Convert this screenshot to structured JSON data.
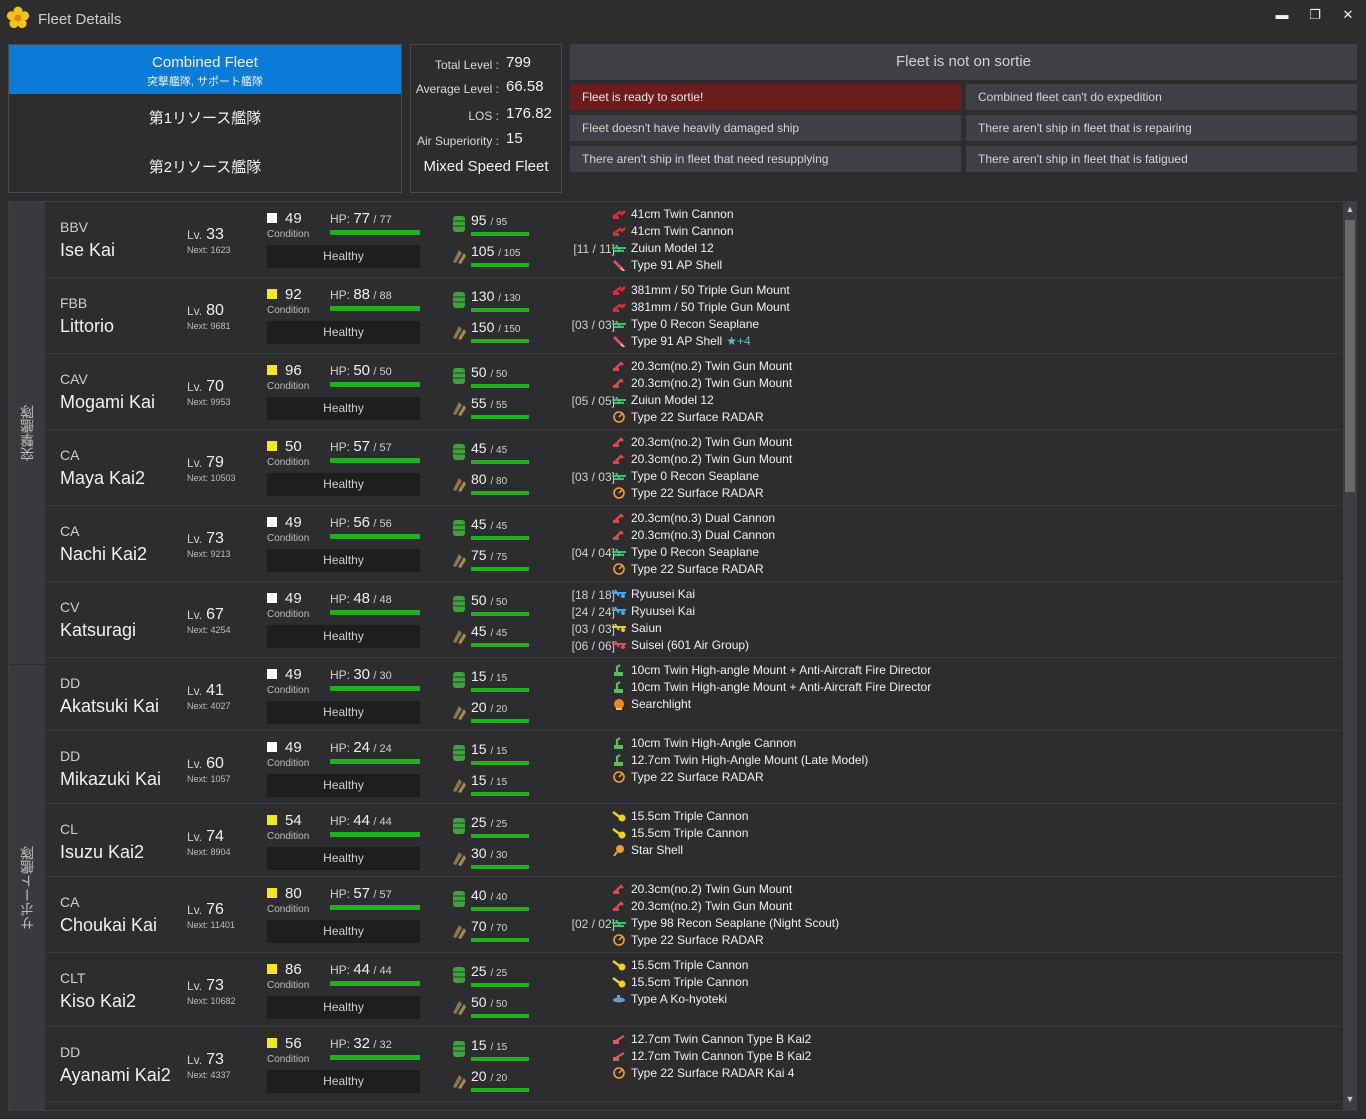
{
  "window": {
    "title": "Fleet Details",
    "minimize_glyph": "▬",
    "restore_glyph": "❐",
    "close_glyph": "✕"
  },
  "fleet_tabs": {
    "combined_label": "Combined Fleet",
    "combined_sub": "突撃艦隊, サポート艦隊",
    "fleet1_label": "第1リソース艦隊",
    "fleet2_label": "第2リソース艦隊"
  },
  "stats": {
    "total_level_label": "Total Level :",
    "total_level": "799",
    "average_level_label": "Average Level :",
    "average_level": "66.58",
    "los_label": "LOS :",
    "los": "176.82",
    "air_superiority_label": "Air Superiority :",
    "air_superiority": "15",
    "speed": "Mixed Speed Fleet"
  },
  "status": {
    "sortie": "Fleet is not on sortie",
    "ready": "Fleet is ready to sortie!",
    "expedition": "Combined fleet can't do expedition",
    "damaged": "Fleet doesn't have heavily damaged ship",
    "repairing": "There aren't ship in fleet that is repairing",
    "resupply": "There aren't ship in fleet that need resupplying",
    "fatigued": "There aren't ship in fleet that is fatigued",
    "ready_color": "#6b1d1d"
  },
  "sections": {
    "strike": "突撃艦隊",
    "support": "サポート艦隊"
  },
  "labels": {
    "lv": "Lv.",
    "next": "Next:",
    "condition": "Condition",
    "hp": "HP:",
    "healthy": "Healthy"
  },
  "colors": {
    "bar_green": "#20b020",
    "accent_blue": "#0a7bd6",
    "cond_white": "#ffffff",
    "cond_yellow": "#f5e61e"
  },
  "ships": [
    {
      "type": "BBV",
      "name": "Ise Kai",
      "lv": "33",
      "next": "1623",
      "cond": "49",
      "cond_color": "white",
      "hp": "77",
      "hp_max": "77",
      "fuel": "95",
      "fuel_max": "95",
      "ammo": "105",
      "ammo_max": "105",
      "equip": [
        {
          "slot": "",
          "icon": "main-gun-red",
          "name": "41cm Twin Cannon"
        },
        {
          "slot": "",
          "icon": "main-gun-red",
          "name": "41cm Twin Cannon"
        },
        {
          "slot": "[11 / 11]",
          "icon": "seaplane-green",
          "name": "Zuiun Model 12"
        },
        {
          "slot": "",
          "icon": "ap-shell",
          "name": "Type 91 AP Shell"
        }
      ]
    },
    {
      "type": "FBB",
      "name": "Littorio",
      "lv": "80",
      "next": "9681",
      "cond": "92",
      "cond_color": "yellow",
      "hp": "88",
      "hp_max": "88",
      "fuel": "130",
      "fuel_max": "130",
      "ammo": "150",
      "ammo_max": "150",
      "equip": [
        {
          "slot": "",
          "icon": "main-gun-red",
          "name": "381mm / 50 Triple Gun Mount"
        },
        {
          "slot": "",
          "icon": "main-gun-red",
          "name": "381mm / 50 Triple Gun Mount"
        },
        {
          "slot": "[03 / 03]",
          "icon": "seaplane-green",
          "name": "Type 0 Recon Seaplane"
        },
        {
          "slot": "",
          "icon": "ap-shell",
          "name": "Type 91 AP Shell",
          "star": "★+4"
        }
      ]
    },
    {
      "type": "CAV",
      "name": "Mogami Kai",
      "lv": "70",
      "next": "9953",
      "cond": "96",
      "cond_color": "yellow",
      "hp": "50",
      "hp_max": "50",
      "fuel": "50",
      "fuel_max": "50",
      "ammo": "55",
      "ammo_max": "55",
      "equip": [
        {
          "slot": "",
          "icon": "medium-gun-red",
          "name": "20.3cm(no.2) Twin Gun Mount"
        },
        {
          "slot": "",
          "icon": "medium-gun-red",
          "name": "20.3cm(no.2) Twin Gun Mount"
        },
        {
          "slot": "[05 / 05]",
          "icon": "seaplane-green",
          "name": "Zuiun Model 12"
        },
        {
          "slot": "",
          "icon": "radar-orange",
          "name": "Type 22 Surface RADAR"
        }
      ]
    },
    {
      "type": "CA",
      "name": "Maya Kai2",
      "lv": "79",
      "next": "10503",
      "cond": "50",
      "cond_color": "yellow",
      "hp": "57",
      "hp_max": "57",
      "fuel": "45",
      "fuel_max": "45",
      "ammo": "80",
      "ammo_max": "80",
      "equip": [
        {
          "slot": "",
          "icon": "medium-gun-red",
          "name": "20.3cm(no.2) Twin Gun Mount"
        },
        {
          "slot": "",
          "icon": "medium-gun-red",
          "name": "20.3cm(no.2) Twin Gun Mount"
        },
        {
          "slot": "[03 / 03]",
          "icon": "seaplane-green",
          "name": "Type 0 Recon Seaplane"
        },
        {
          "slot": "",
          "icon": "radar-orange",
          "name": "Type 22 Surface RADAR"
        }
      ]
    },
    {
      "type": "CA",
      "name": "Nachi Kai2",
      "lv": "73",
      "next": "9213",
      "cond": "49",
      "cond_color": "white",
      "hp": "56",
      "hp_max": "56",
      "fuel": "45",
      "fuel_max": "45",
      "ammo": "75",
      "ammo_max": "75",
      "equip": [
        {
          "slot": "",
          "icon": "medium-gun-red",
          "name": "20.3cm(no.3) Dual Cannon"
        },
        {
          "slot": "",
          "icon": "medium-gun-red",
          "name": "20.3cm(no.3) Dual Cannon"
        },
        {
          "slot": "[04 / 04]",
          "icon": "seaplane-green",
          "name": "Type 0 Recon Seaplane"
        },
        {
          "slot": "",
          "icon": "radar-orange",
          "name": "Type 22 Surface RADAR"
        }
      ]
    },
    {
      "type": "CV",
      "name": "Katsuragi",
      "lv": "67",
      "next": "4254",
      "cond": "49",
      "cond_color": "white",
      "hp": "48",
      "hp_max": "48",
      "fuel": "50",
      "fuel_max": "50",
      "ammo": "45",
      "ammo_max": "45",
      "equip": [
        {
          "slot": "[18 / 18]",
          "icon": "torpedo-bomber-blue",
          "name": "Ryuusei Kai"
        },
        {
          "slot": "[24 / 24]",
          "icon": "torpedo-bomber-blue",
          "name": "Ryuusei Kai"
        },
        {
          "slot": "[03 / 03]",
          "icon": "recon-plane-yellow",
          "name": "Saiun"
        },
        {
          "slot": "[06 / 06]",
          "icon": "dive-bomber-red",
          "name": "Suisei (601 Air Group)"
        }
      ]
    },
    {
      "type": "DD",
      "name": "Akatsuki Kai",
      "lv": "41",
      "next": "4027",
      "cond": "49",
      "cond_color": "white",
      "hp": "30",
      "hp_max": "30",
      "fuel": "15",
      "fuel_max": "15",
      "ammo": "20",
      "ammo_max": "20",
      "equip": [
        {
          "slot": "",
          "icon": "ha-gun-green",
          "name": "10cm Twin High-angle Mount + Anti-Aircraft Fire Director"
        },
        {
          "slot": "",
          "icon": "ha-gun-green",
          "name": "10cm Twin High-angle Mount + Anti-Aircraft Fire Director"
        },
        {
          "slot": "",
          "icon": "searchlight-orange",
          "name": "Searchlight"
        }
      ]
    },
    {
      "type": "DD",
      "name": "Mikazuki Kai",
      "lv": "60",
      "next": "1057",
      "cond": "49",
      "cond_color": "white",
      "hp": "24",
      "hp_max": "24",
      "fuel": "15",
      "fuel_max": "15",
      "ammo": "15",
      "ammo_max": "15",
      "equip": [
        {
          "slot": "",
          "icon": "ha-gun-green",
          "name": "10cm Twin High-Angle Cannon"
        },
        {
          "slot": "",
          "icon": "ha-gun-green",
          "name": "12.7cm Twin High-Angle Mount (Late Model)"
        },
        {
          "slot": "",
          "icon": "radar-orange",
          "name": "Type 22 Surface RADAR"
        }
      ]
    },
    {
      "type": "CL",
      "name": "Isuzu Kai2",
      "lv": "74",
      "next": "8904",
      "cond": "54",
      "cond_color": "yellow",
      "hp": "44",
      "hp_max": "44",
      "fuel": "25",
      "fuel_max": "25",
      "ammo": "30",
      "ammo_max": "30",
      "equip": [
        {
          "slot": "",
          "icon": "secondary-gun-yellow",
          "name": "15.5cm Triple Cannon"
        },
        {
          "slot": "",
          "icon": "secondary-gun-yellow",
          "name": "15.5cm Triple Cannon"
        },
        {
          "slot": "",
          "icon": "star-shell-orange",
          "name": "Star Shell"
        }
      ]
    },
    {
      "type": "CA",
      "name": "Choukai Kai",
      "lv": "76",
      "next": "11401",
      "cond": "80",
      "cond_color": "yellow",
      "hp": "57",
      "hp_max": "57",
      "fuel": "40",
      "fuel_max": "40",
      "ammo": "70",
      "ammo_max": "70",
      "equip": [
        {
          "slot": "",
          "icon": "medium-gun-red",
          "name": "20.3cm(no.2) Twin Gun Mount"
        },
        {
          "slot": "",
          "icon": "medium-gun-red",
          "name": "20.3cm(no.2) Twin Gun Mount"
        },
        {
          "slot": "[02 / 02]",
          "icon": "seaplane-green",
          "name": "Type 98 Recon Seaplane (Night Scout)"
        },
        {
          "slot": "",
          "icon": "radar-orange",
          "name": "Type 22 Surface RADAR"
        }
      ]
    },
    {
      "type": "CLT",
      "name": "Kiso Kai2",
      "lv": "73",
      "next": "10682",
      "cond": "86",
      "cond_color": "yellow",
      "hp": "44",
      "hp_max": "44",
      "fuel": "25",
      "fuel_max": "25",
      "ammo": "50",
      "ammo_max": "50",
      "equip": [
        {
          "slot": "",
          "icon": "secondary-gun-yellow",
          "name": "15.5cm Triple Cannon"
        },
        {
          "slot": "",
          "icon": "secondary-gun-yellow",
          "name": "15.5cm Triple Cannon"
        },
        {
          "slot": "",
          "icon": "midget-sub-blue",
          "name": "Type A Ko-hyoteki"
        }
      ]
    },
    {
      "type": "DD",
      "name": "Ayanami Kai2",
      "lv": "73",
      "next": "4337",
      "cond": "56",
      "cond_color": "yellow",
      "hp": "32",
      "hp_max": "32",
      "fuel": "15",
      "fuel_max": "15",
      "ammo": "20",
      "ammo_max": "20",
      "equip": [
        {
          "slot": "",
          "icon": "small-gun-red",
          "name": "12.7cm Twin Cannon Type B Kai2"
        },
        {
          "slot": "",
          "icon": "small-gun-red",
          "name": "12.7cm Twin Cannon Type B Kai2"
        },
        {
          "slot": "",
          "icon": "radar-orange",
          "name": "Type 22 Surface RADAR Kai 4"
        }
      ]
    }
  ]
}
